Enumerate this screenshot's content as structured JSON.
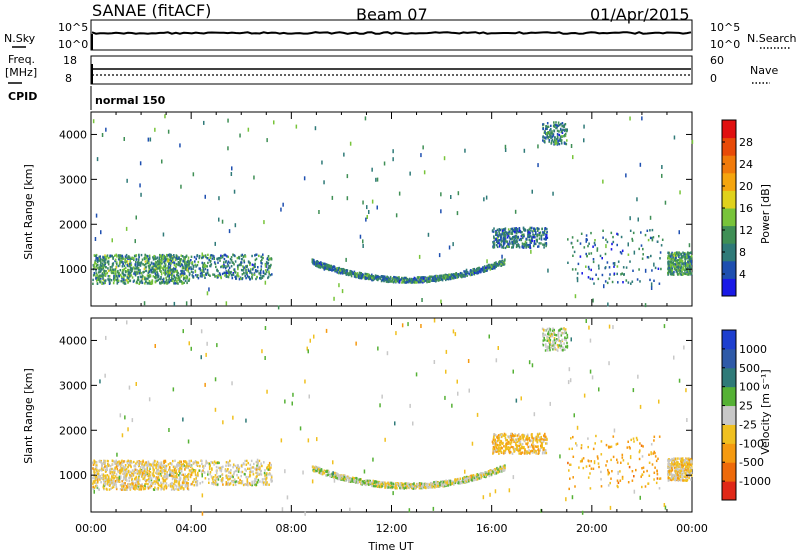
{
  "header": {
    "station": "SANAE (fitACF)",
    "beam": "Beam 07",
    "date": "01/Apr/2015"
  },
  "top_panels": {
    "nsky_label": "N.Sky",
    "nsky_ticks": [
      "10^5",
      "10^0"
    ],
    "nsearch_label": "N.Search",
    "nsearch_ticks": [
      "10^5",
      "10^0"
    ],
    "freq_label": "Freq.",
    "freq_unit": "[MHz]",
    "freq_ticks": [
      "18",
      "8"
    ],
    "nave_label": "Nave",
    "nave_ticks": [
      "60",
      "0"
    ],
    "cpid_label": "CPID",
    "cpid_value": "normal 150"
  },
  "colors": {
    "power": [
      "#1a1ae6",
      "#1e4fb0",
      "#2f7a78",
      "#3f8f55",
      "#78c43a",
      "#e0d21c",
      "#f5a50e",
      "#f07a0a",
      "#e84a08",
      "#e01010"
    ],
    "velocity": [
      "#1e3fcf",
      "#2f5aa8",
      "#2f7a78",
      "#55b135",
      "#c8c8c8",
      "#f0c020",
      "#f59a10",
      "#ee6a0a",
      "#e02818"
    ]
  },
  "chart_data": [
    {
      "type": "heatmap",
      "title": "Power",
      "ylabel": "Slant Range [km]",
      "xlabel": "",
      "x_ticks": [
        "00:00",
        "04:00",
        "08:00",
        "12:00",
        "16:00",
        "20:00",
        "00:00"
      ],
      "xlim_hours": [
        0,
        24
      ],
      "ylim": [
        180,
        4500
      ],
      "y_ticks": [
        1000,
        2000,
        3000,
        4000
      ],
      "colorbar": {
        "label": "Power [dB]",
        "ticks": [
          "28",
          "24",
          "20",
          "16",
          "12",
          "8",
          "4"
        ],
        "range": [
          0,
          30
        ]
      },
      "scatter_regions": [
        {
          "t0": 0.0,
          "t1": 3.9,
          "r0": 700,
          "r1": 1350,
          "value": 10,
          "density": "high"
        },
        {
          "t0": 3.9,
          "t1": 7.2,
          "r0": 800,
          "r1": 1350,
          "value": 8,
          "density": "medium"
        },
        {
          "t0": 8.8,
          "t1": 16.5,
          "r0": 750,
          "r1": 1200,
          "value": 8,
          "density": "high",
          "shape": "arc"
        },
        {
          "t0": 16.0,
          "t1": 18.2,
          "r0": 1500,
          "r1": 1950,
          "value": 7,
          "density": "medium"
        },
        {
          "t0": 19.0,
          "t1": 22.8,
          "r0": 700,
          "r1": 1900,
          "value": 7,
          "density": "sparse"
        },
        {
          "t0": 23.0,
          "t1": 24.0,
          "r0": 900,
          "r1": 1400,
          "value": 10,
          "density": "medium"
        },
        {
          "t0": 18.0,
          "t1": 19.0,
          "r0": 3800,
          "r1": 4300,
          "value": 8,
          "density": "sparse"
        }
      ]
    },
    {
      "type": "heatmap",
      "title": "Velocity",
      "ylabel": "Slant Range [km]",
      "xlabel": "Time UT",
      "x_ticks": [
        "00:00",
        "04:00",
        "08:00",
        "12:00",
        "16:00",
        "20:00",
        "00:00"
      ],
      "xlim_hours": [
        0,
        24
      ],
      "ylim": [
        180,
        4500
      ],
      "y_ticks": [
        1000,
        2000,
        3000,
        4000
      ],
      "colorbar": {
        "label": "Velocity [m s⁻¹]",
        "ticks": [
          "1000",
          "500",
          "100",
          "25",
          "-25",
          "-100",
          "-500",
          "-1000"
        ],
        "range": [
          -1200,
          1200
        ]
      },
      "scatter_regions": [
        {
          "t0": 0.0,
          "t1": 3.9,
          "r0": 700,
          "r1": 1350,
          "value": -150,
          "density": "high"
        },
        {
          "t0": 3.9,
          "t1": 7.2,
          "r0": 800,
          "r1": 1350,
          "value": -120,
          "density": "medium"
        },
        {
          "t0": 8.8,
          "t1": 16.5,
          "r0": 750,
          "r1": 1200,
          "value": 0,
          "density": "high",
          "shape": "arc"
        },
        {
          "t0": 16.0,
          "t1": 18.2,
          "r0": 1500,
          "r1": 1950,
          "value": -300,
          "density": "medium"
        },
        {
          "t0": 19.0,
          "t1": 22.8,
          "r0": 700,
          "r1": 1900,
          "value": -400,
          "density": "sparse"
        },
        {
          "t0": 23.0,
          "t1": 24.0,
          "r0": 900,
          "r1": 1400,
          "value": -200,
          "density": "medium"
        },
        {
          "t0": 18.0,
          "t1": 19.0,
          "r0": 3800,
          "r1": 4300,
          "value": 100,
          "density": "sparse"
        }
      ]
    }
  ]
}
